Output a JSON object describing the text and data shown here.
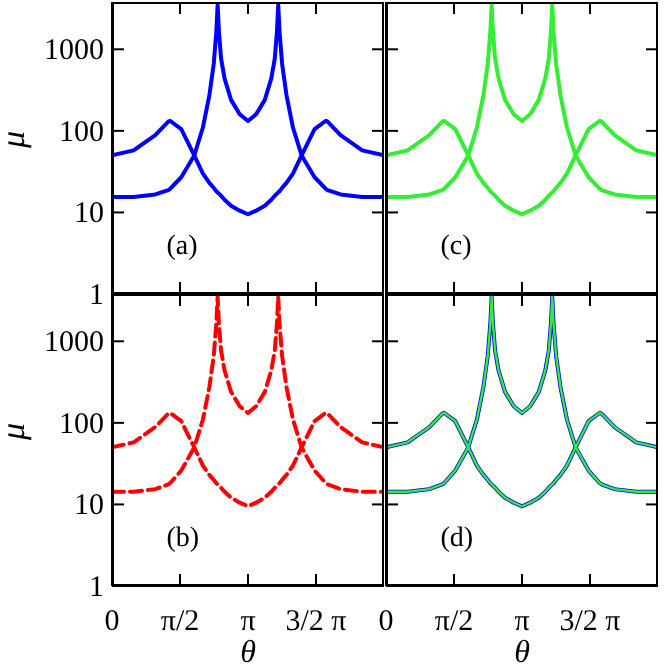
{
  "chart_data": [
    {
      "type": "line",
      "annotations": [
        "(a)"
      ],
      "ylabel": "μ",
      "log": true,
      "tick_labels": "y",
      "xlim": [
        0,
        6.2832
      ],
      "ylim": [
        1,
        3800
      ],
      "xticks": [
        {
          "value": 0,
          "label": null
        },
        {
          "value": 1.5708,
          "label": null
        },
        {
          "value": 3.1416,
          "label": null
        },
        {
          "value": 4.7124,
          "label": null
        }
      ],
      "yticks": [
        1,
        10,
        100,
        1000
      ],
      "x": [
        0,
        0.5,
        1.0,
        1.3,
        1.34,
        1.6,
        1.9,
        2.1,
        2.25,
        2.35,
        2.41,
        2.44,
        2.47,
        2.52,
        2.6,
        2.75,
        2.95,
        3.1416,
        3.33,
        3.53,
        3.68,
        3.76,
        3.81,
        3.84,
        3.87,
        3.93,
        4.03,
        4.18,
        4.38,
        4.68,
        4.94,
        4.98,
        5.28,
        5.78,
        6.2832
      ],
      "series": [
        {
          "color": "#0000ff",
          "line_style": "solid",
          "values": [
            15.5,
            15.5,
            16.6,
            18.8,
            19.4,
            27,
            50,
            110,
            275,
            660,
            1650,
            3500,
            1650,
            770,
            440,
            240,
            160,
            132,
            160,
            240,
            440,
            770,
            1650,
            3500,
            1650,
            660,
            275,
            110,
            50,
            27,
            19.4,
            18.8,
            16.6,
            15.5,
            15.5
          ]
        },
        {
          "color": "#0000ff",
          "line_style": "solid",
          "values": [
            50,
            57.7,
            88.8,
            130,
            133,
            105,
            50,
            30,
            23,
            20,
            18.2,
            17.6,
            17,
            16,
            14.3,
            12.1,
            10.5,
            9.5,
            10.5,
            12.1,
            14.3,
            16,
            17,
            17.6,
            18.2,
            20,
            23,
            30,
            50,
            105,
            133,
            130,
            88.8,
            57.7,
            50
          ]
        }
      ]
    },
    {
      "type": "line",
      "annotations": [
        "(b)"
      ],
      "ylabel": "μ",
      "xlabel": "θ",
      "log": true,
      "xlim": [
        0,
        6.2832
      ],
      "ylim": [
        1,
        3800
      ],
      "xticks": [
        0,
        {
          "value": 1.5708,
          "label": "π/2"
        },
        {
          "value": 3.1416,
          "label": "π"
        },
        {
          "value": 4.7124,
          "label": "3/2 π"
        }
      ],
      "yticks": [
        1,
        10,
        100,
        1000
      ],
      "x": [
        0,
        0.5,
        1.0,
        1.3,
        1.34,
        1.6,
        1.9,
        2.1,
        2.25,
        2.35,
        2.41,
        2.44,
        2.47,
        2.52,
        2.6,
        2.75,
        2.95,
        3.1416,
        3.33,
        3.53,
        3.68,
        3.76,
        3.81,
        3.84,
        3.87,
        3.93,
        4.03,
        4.18,
        4.38,
        4.68,
        4.94,
        4.98,
        5.28,
        5.78,
        6.2832
      ],
      "series": [
        {
          "color": "#ff0000",
          "line_style": "dashed",
          "values": [
            14.3,
            14.3,
            15.4,
            17.6,
            18.2,
            26,
            50,
            110,
            275,
            660,
            1650,
            3500,
            1650,
            770,
            440,
            240,
            160,
            132,
            160,
            240,
            440,
            770,
            1650,
            3500,
            1650,
            660,
            275,
            110,
            50,
            26,
            18.2,
            17.6,
            15.4,
            14.3,
            14.3
          ]
        },
        {
          "color": "#ff0000",
          "line_style": "dashed",
          "values": [
            50,
            57.7,
            88.8,
            130,
            133,
            105,
            50,
            30,
            23,
            20,
            18.2,
            17.6,
            17,
            16,
            14.3,
            12.1,
            10.5,
            9.5,
            10.5,
            12.1,
            14.3,
            16,
            17,
            17.6,
            18.2,
            20,
            23,
            30,
            50,
            105,
            133,
            130,
            88.8,
            57.7,
            50
          ]
        }
      ]
    },
    {
      "type": "line",
      "annotations": [
        "(c)"
      ],
      "log": true,
      "tick_labels": false,
      "xlim": [
        0,
        6.2832
      ],
      "ylim": [
        1,
        3800
      ],
      "xticks": [
        {
          "value": 0,
          "label": null
        },
        {
          "value": 1.5708,
          "label": null
        },
        {
          "value": 3.1416,
          "label": null
        },
        {
          "value": 4.7124,
          "label": null
        }
      ],
      "yticks": [
        {
          "value": 1,
          "label": null
        },
        {
          "value": 10,
          "label": null
        },
        {
          "value": 100,
          "label": null
        },
        {
          "value": 1000,
          "label": null
        }
      ],
      "x": [
        0,
        0.5,
        1.0,
        1.3,
        1.34,
        1.6,
        1.9,
        2.1,
        2.25,
        2.35,
        2.41,
        2.44,
        2.47,
        2.52,
        2.6,
        2.75,
        2.95,
        3.1416,
        3.33,
        3.53,
        3.68,
        3.76,
        3.81,
        3.84,
        3.87,
        3.93,
        4.03,
        4.18,
        4.38,
        4.68,
        4.94,
        4.98,
        5.28,
        5.78,
        6.2832
      ],
      "series": [
        {
          "color": "#33ee33",
          "line_style": "solid",
          "values": [
            15.5,
            15.5,
            16.6,
            18.8,
            19.4,
            27,
            50,
            110,
            275,
            660,
            1650,
            3500,
            1650,
            770,
            440,
            240,
            160,
            132,
            160,
            240,
            440,
            770,
            1650,
            3500,
            1650,
            660,
            275,
            110,
            50,
            27,
            19.4,
            18.8,
            16.6,
            15.5,
            15.5
          ]
        },
        {
          "color": "#33ee33",
          "line_style": "solid",
          "values": [
            50,
            57.7,
            88.8,
            130,
            133,
            105,
            50,
            30,
            23,
            20,
            18.2,
            17.6,
            17,
            16,
            14.3,
            12.1,
            10.5,
            9.5,
            10.5,
            12.1,
            14.3,
            16,
            17,
            17.6,
            18.2,
            20,
            23,
            30,
            50,
            105,
            133,
            130,
            88.8,
            57.7,
            50
          ]
        }
      ]
    },
    {
      "type": "line",
      "annotations": [
        "(d)"
      ],
      "xlabel": "θ",
      "log": true,
      "tick_labels": "x",
      "xlim": [
        0,
        6.2832
      ],
      "ylim": [
        1,
        3800
      ],
      "xticks": [
        0,
        {
          "value": 1.5708,
          "label": "π/2"
        },
        {
          "value": 3.1416,
          "label": "π"
        },
        {
          "value": 4.7124,
          "label": "3/2 π"
        }
      ],
      "yticks": [
        {
          "value": 1,
          "label": null
        },
        {
          "value": 10,
          "label": null
        },
        {
          "value": 100,
          "label": null
        },
        {
          "value": 1000,
          "label": null
        }
      ],
      "x": [
        0,
        0.5,
        1.0,
        1.3,
        1.34,
        1.6,
        1.9,
        2.1,
        2.25,
        2.35,
        2.41,
        2.44,
        2.47,
        2.52,
        2.6,
        2.75,
        2.95,
        3.1416,
        3.33,
        3.53,
        3.68,
        3.76,
        3.81,
        3.84,
        3.87,
        3.93,
        4.03,
        4.18,
        4.38,
        4.68,
        4.94,
        4.98,
        5.28,
        5.78,
        6.2832
      ],
      "series": [
        {
          "color": "#0000ff",
          "line_style": "solid",
          "values": [
            14.3,
            14.3,
            15.4,
            17.6,
            18.2,
            26,
            50,
            110,
            275,
            660,
            1650,
            3500,
            1650,
            770,
            440,
            240,
            160,
            132,
            160,
            240,
            440,
            770,
            1650,
            3500,
            1650,
            660,
            275,
            110,
            50,
            26,
            18.2,
            17.6,
            15.4,
            14.3,
            14.3
          ]
        },
        {
          "color": "#0000ff",
          "line_style": "solid",
          "values": [
            50,
            57.7,
            88.8,
            130,
            133,
            105,
            50,
            30,
            23,
            20,
            18.2,
            17.6,
            17,
            16,
            14.3,
            12.1,
            10.5,
            9.5,
            10.5,
            12.1,
            14.3,
            16,
            17,
            17.6,
            18.2,
            20,
            23,
            30,
            50,
            105,
            133,
            130,
            88.8,
            57.7,
            50
          ]
        },
        {
          "color": "#33ee33",
          "line_style": "solid",
          "values": [
            14.3,
            14.3,
            15.4,
            17.6,
            18.2,
            26,
            50,
            110,
            275,
            660,
            1650,
            3500,
            1650,
            770,
            440,
            240,
            160,
            132,
            160,
            240,
            440,
            770,
            1650,
            3500,
            1650,
            660,
            275,
            110,
            50,
            26,
            18.2,
            17.6,
            15.4,
            14.3,
            14.3
          ]
        },
        {
          "color": "#33ee33",
          "line_style": "solid",
          "values": [
            50,
            57.7,
            88.8,
            130,
            133,
            105,
            50,
            30,
            23,
            20,
            18.2,
            17.6,
            17,
            16,
            14.3,
            12.1,
            10.5,
            9.5,
            10.5,
            12.1,
            14.3,
            16,
            17,
            17.6,
            18.2,
            20,
            23,
            30,
            50,
            105,
            133,
            130,
            88.8,
            57.7,
            50
          ]
        }
      ]
    }
  ]
}
